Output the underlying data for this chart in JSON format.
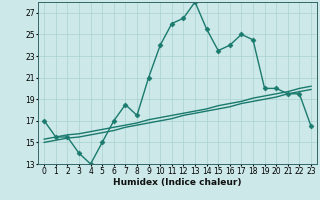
{
  "line1_x": [
    0,
    1,
    2,
    3,
    4,
    5,
    6,
    7,
    8,
    9,
    10,
    11,
    12,
    13,
    14,
    15,
    16,
    17,
    18,
    19,
    20,
    21,
    22,
    23
  ],
  "line1_y": [
    17,
    15.5,
    15.5,
    14,
    13,
    15,
    17,
    18.5,
    17.5,
    21,
    24,
    26,
    26.5,
    28,
    25.5,
    23.5,
    24,
    25,
    24.5,
    20,
    20,
    19.5,
    19.5,
    16.5
  ],
  "line2_x": [
    0,
    1,
    2,
    3,
    4,
    5,
    6,
    7,
    8,
    9,
    10,
    11,
    12,
    13,
    14,
    15,
    16,
    17,
    18,
    19,
    20,
    21,
    22,
    23
  ],
  "line2_y": [
    15.0,
    15.2,
    15.4,
    15.5,
    15.7,
    15.9,
    16.1,
    16.4,
    16.6,
    16.8,
    17.0,
    17.2,
    17.5,
    17.7,
    17.9,
    18.1,
    18.3,
    18.6,
    18.8,
    19.0,
    19.2,
    19.5,
    19.7,
    19.9
  ],
  "line3_x": [
    0,
    1,
    2,
    3,
    4,
    5,
    6,
    7,
    8,
    9,
    10,
    11,
    12,
    13,
    14,
    15,
    16,
    17,
    18,
    19,
    20,
    21,
    22,
    23
  ],
  "line3_y": [
    15.3,
    15.5,
    15.7,
    15.8,
    16.0,
    16.2,
    16.4,
    16.6,
    16.8,
    17.1,
    17.3,
    17.5,
    17.7,
    17.9,
    18.1,
    18.4,
    18.6,
    18.8,
    19.1,
    19.3,
    19.5,
    19.7,
    20.0,
    20.2
  ],
  "line_color": "#1a7a6e",
  "bg_color": "#cce8e8",
  "grid_color": "#aad0d0",
  "xlabel": "Humidex (Indice chaleur)",
  "xlim": [
    -0.5,
    23.5
  ],
  "ylim": [
    13,
    28
  ],
  "yticks": [
    13,
    15,
    17,
    19,
    21,
    23,
    25,
    27
  ],
  "xticks": [
    0,
    1,
    2,
    3,
    4,
    5,
    6,
    7,
    8,
    9,
    10,
    11,
    12,
    13,
    14,
    15,
    16,
    17,
    18,
    19,
    20,
    21,
    22,
    23
  ],
  "xtick_labels": [
    "0",
    "1",
    "2",
    "3",
    "4",
    "5",
    "6",
    "7",
    "8",
    "9",
    "10",
    "11",
    "12",
    "13",
    "14",
    "15",
    "16",
    "17",
    "18",
    "19",
    "20",
    "21",
    "22",
    "23"
  ],
  "marker": "D",
  "markersize": 2.5,
  "linewidth": 1.0,
  "tick_fontsize": 5.5,
  "xlabel_fontsize": 6.5
}
